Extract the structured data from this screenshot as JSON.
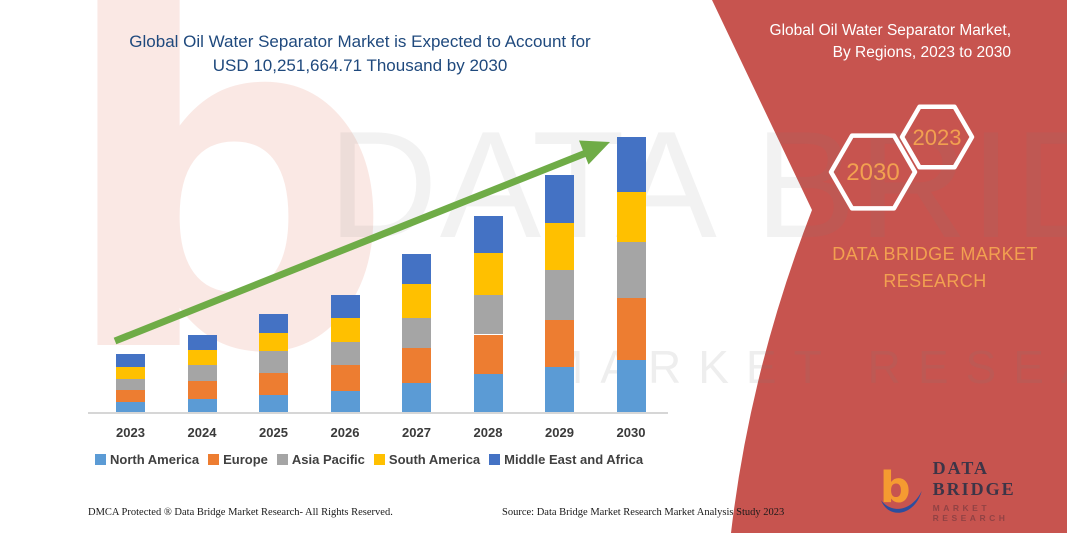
{
  "header": {
    "title_line1": "Global Oil Water Separator Market is Expected to Account for",
    "title_line2": "USD 10,251,664.71 Thousand by 2030",
    "title_color": "#1F497D"
  },
  "watermarks": {
    "big_letter": "b",
    "brand": "DATA BRIDGE",
    "sub": "MARKET RESEARCH"
  },
  "chart_data": {
    "type": "bar",
    "stacked": true,
    "title": "Global Oil Water Separator Market is Expected to Account for USD 10,251,664.71 Thousand by 2030",
    "unit": "USD Thousand",
    "value_axis_shown": false,
    "gridlines": false,
    "legend_position": "bottom",
    "trend_arrow": true,
    "ylim": [
      0,
      10500000
    ],
    "categories": [
      "2023",
      "2024",
      "2025",
      "2026",
      "2027",
      "2028",
      "2029",
      "2030"
    ],
    "series": [
      {
        "name": "North America",
        "color": "#5B9BD5",
        "values": [
          410000,
          533000,
          681000,
          830000,
          1117000,
          1464000,
          1713000,
          1962000
        ]
      },
      {
        "name": "Europe",
        "color": "#ED7D31",
        "values": [
          436000,
          659000,
          808000,
          968000,
          1303000,
          1452000,
          1739000,
          2320000
        ]
      },
      {
        "name": "Asia Pacific",
        "color": "#A5A5A5",
        "values": [
          410000,
          585000,
          808000,
          830000,
          1117000,
          1464000,
          1862000,
          2059000
        ]
      },
      {
        "name": "South America",
        "color": "#FFC000",
        "values": [
          458000,
          559000,
          659000,
          909000,
          1240000,
          1575000,
          1739000,
          1888000
        ]
      },
      {
        "name": "Middle East and Africa",
        "color": "#4472C4",
        "values": [
          495000,
          559000,
          719000,
          841000,
          1143000,
          1367000,
          1776000,
          2023000
        ]
      }
    ],
    "total_2030": "10,251,664.71",
    "arrow_color": "#6FAC47"
  },
  "side_panel": {
    "bg_color": "#C7544F",
    "title_line1": "Global Oil Water Separator Market,",
    "title_line2": "By Regions, 2023 to 2030",
    "accent_color": "#F2A050",
    "hexagons": [
      {
        "label": "2030"
      },
      {
        "label": "2023"
      }
    ],
    "brand_line1": "DATA BRIDGE MARKET",
    "brand_line2": "RESEARCH"
  },
  "logo": {
    "name": "DATA BRIDGE",
    "subtitle": "MARKET RESEARCH"
  },
  "footer": {
    "left": "DMCA Protected ® Data Bridge Market Research-  All Rights Reserved.",
    "source": "Source: Data Bridge Market Research  Market Analysis Study 2023"
  }
}
